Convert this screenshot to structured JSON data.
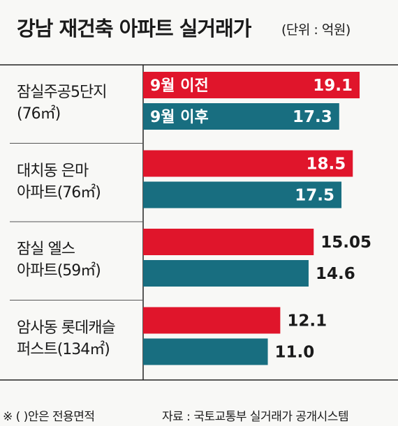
{
  "title": "강남 재건축 아파트 실거래가",
  "unit": "(단위 : 억원)",
  "colors": {
    "before": "#e0152b",
    "after": "#186e80",
    "rule": "#222222",
    "bg": "#f8f8f6"
  },
  "chart_data": {
    "type": "bar",
    "orientation": "horizontal",
    "categories": [
      [
        "잠실주공5단지",
        "(76㎡)"
      ],
      [
        "대치동 은마",
        "아파트(76㎡)"
      ],
      [
        "잠실 엘스",
        "아파트(59㎡)"
      ],
      [
        "암사동 롯데캐슬",
        "퍼스트(134㎡)"
      ]
    ],
    "series": [
      {
        "name": "9월 이전",
        "values": [
          19.1,
          18.5,
          15.05,
          12.1
        ],
        "labels": [
          "19.1",
          "18.5",
          "15.05",
          "12.1"
        ]
      },
      {
        "name": "9월 이후",
        "values": [
          17.3,
          17.5,
          14.6,
          11.0
        ],
        "labels": [
          "17.3",
          "17.5",
          "14.6",
          "11.0"
        ]
      }
    ],
    "xlim": [
      0,
      20
    ],
    "legend": "inline-in-first-bars",
    "grid": false
  },
  "footnotes": {
    "left": "※ (  )안은 전용면적",
    "right": "자료 : 국토교통부 실거래가 공개시스템"
  }
}
